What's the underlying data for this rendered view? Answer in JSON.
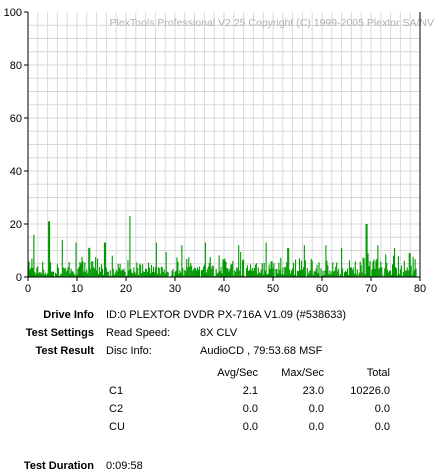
{
  "chart_data": {
    "type": "bar",
    "watermark": "PlexTools Professional V2.25 Copyright (C) 1999-2005 Plextor SA/NV",
    "xlim": [
      0,
      80
    ],
    "ylim": [
      0,
      100
    ],
    "xticks": [
      0,
      10,
      20,
      30,
      40,
      50,
      60,
      70,
      80
    ],
    "yticks": [
      0,
      20,
      40,
      60,
      80,
      100
    ],
    "grid": true,
    "bar_color": "#009900",
    "end_marker_x": 80,
    "series": [
      {
        "peaks": [
          {
            "x": 1.2,
            "y": 16
          },
          {
            "x": 4.3,
            "y": 21
          },
          {
            "x": 7.0,
            "y": 14
          },
          {
            "x": 9.8,
            "y": 13
          },
          {
            "x": 12.5,
            "y": 11
          },
          {
            "x": 15.7,
            "y": 13
          },
          {
            "x": 20.8,
            "y": 23
          },
          {
            "x": 26.2,
            "y": 13
          },
          {
            "x": 31.4,
            "y": 12
          },
          {
            "x": 36.2,
            "y": 13
          },
          {
            "x": 43.0,
            "y": 12
          },
          {
            "x": 48.6,
            "y": 13
          },
          {
            "x": 53.1,
            "y": 11
          },
          {
            "x": 56.4,
            "y": 12
          },
          {
            "x": 60.8,
            "y": 12
          },
          {
            "x": 64.0,
            "y": 11
          },
          {
            "x": 69.1,
            "y": 20
          },
          {
            "x": 71.4,
            "y": 12
          },
          {
            "x": 74.8,
            "y": 11
          },
          {
            "x": 77.9,
            "y": 9
          }
        ],
        "avg": 2.1,
        "max": 23.0
      }
    ]
  },
  "info": {
    "drive_label": "Drive Info",
    "drive_value": "ID:0 PLEXTOR DVDR PX-716A V1.09 (#538633)",
    "settings_label": "Test Settings",
    "settings_key": "Read Speed:",
    "settings_value": "8X CLV",
    "result_label": "Test Result",
    "result_key": "Disc Info:",
    "result_value": "AudioCD , 79:53.68 MSF",
    "col_avg": "Avg/Sec",
    "col_max": "Max/Sec",
    "col_total": "Total",
    "rows": [
      {
        "name": "C1",
        "avg": "2.1",
        "max": "23.0",
        "total": "10226.0"
      },
      {
        "name": "C2",
        "avg": "0.0",
        "max": "0.0",
        "total": "0.0"
      },
      {
        "name": "CU",
        "avg": "0.0",
        "max": "0.0",
        "total": "0.0"
      }
    ],
    "duration_label": "Test Duration",
    "duration_value": "0:09:58"
  }
}
